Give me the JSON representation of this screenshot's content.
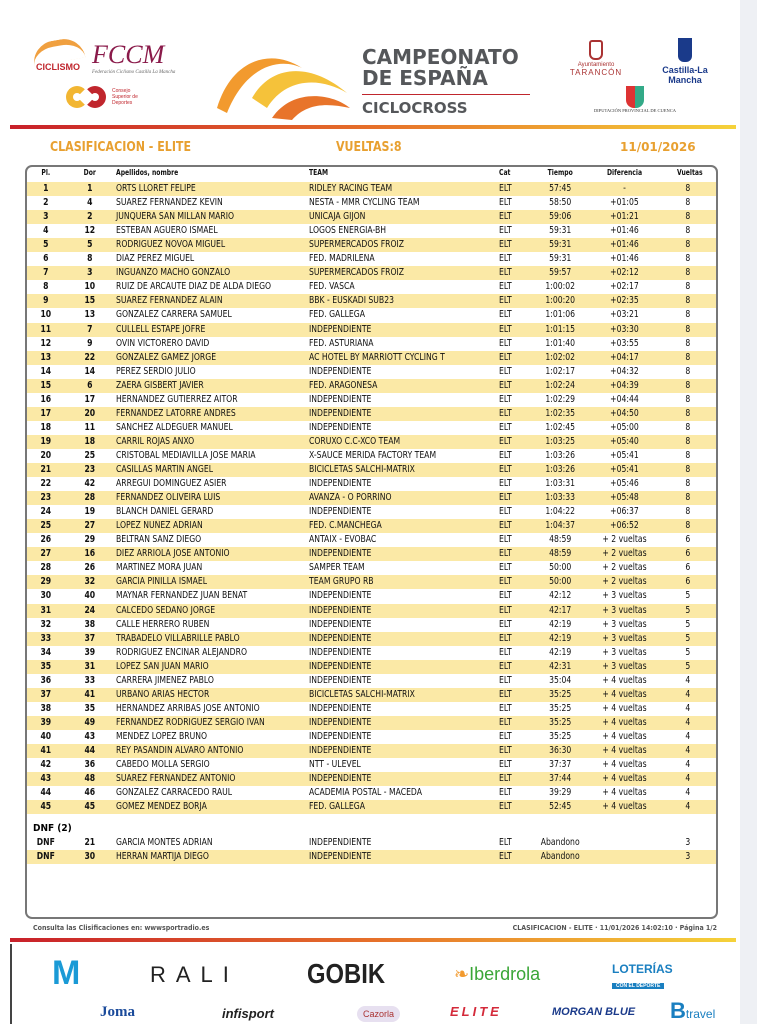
{
  "header": {
    "logos": {
      "rfec": "CICLISMO",
      "fccm": "FCCM",
      "fccm_sub": "Federación Ciclismo Castilla La Mancha",
      "csd": "Consejo Superior de Deportes",
      "tarancon_a": "Ayuntamiento",
      "tarancon_b": "TARANCÓN",
      "clm": "Castilla-La Mancha",
      "diputacion": "DIPUTACIÓN PROVINCIAL DE CUENCA"
    },
    "title_line1": "CAMPEONATO",
    "title_line2": "DE ESPAÑA",
    "title_line3": "CICLOCROSS",
    "classification": "CLASIFICACION - ELITE",
    "laps": "VUELTAS:8",
    "date": "11/01/2026"
  },
  "colors": {
    "accent": "#e8a030",
    "row_alt": "#fbe9a6",
    "bar_start": "#c8202a",
    "bar_end": "#f5d23a"
  },
  "table": {
    "columns": [
      "Pl.",
      "Dor",
      "Apellidos, nombre",
      "TEAM",
      "Cat",
      "Tiempo",
      "Diferencia",
      "Vueltas"
    ],
    "rows": [
      [
        "1",
        "1",
        "ORTS LLORET FELIPE",
        "RIDLEY RACING TEAM",
        "ELT",
        "57:45",
        "-",
        "8"
      ],
      [
        "2",
        "4",
        "SUAREZ FERNANDEZ KEVIN",
        "NESTA - MMR CYCLING TEAM",
        "ELT",
        "58:50",
        "+01:05",
        "8"
      ],
      [
        "3",
        "2",
        "JUNQUERA SAN MILLAN MARIO",
        "UNICAJA GIJON",
        "ELT",
        "59:06",
        "+01:21",
        "8"
      ],
      [
        "4",
        "12",
        "ESTEBAN AGUERO ISMAEL",
        "LOGOS ENERGIA-BH",
        "ELT",
        "59:31",
        "+01:46",
        "8"
      ],
      [
        "5",
        "5",
        "RODRIGUEZ NOVOA MIGUEL",
        "SUPERMERCADOS FROIZ",
        "ELT",
        "59:31",
        "+01:46",
        "8"
      ],
      [
        "6",
        "8",
        "DIAZ PEREZ MIGUEL",
        "FED. MADRILEÑA",
        "ELT",
        "59:31",
        "+01:46",
        "8"
      ],
      [
        "7",
        "3",
        "INGUANZO MACHO GONZALO",
        "SUPERMERCADOS FROIZ",
        "ELT",
        "59:57",
        "+02:12",
        "8"
      ],
      [
        "8",
        "10",
        "RUIZ DE ARCAUTE DIAZ DE ALDA DIEGO",
        "FED. VASCA",
        "ELT",
        "1:00:02",
        "+02:17",
        "8"
      ],
      [
        "9",
        "15",
        "SUAREZ FERNANDEZ ALAIN",
        "BBK - EUSKADI SUB23",
        "ELT",
        "1:00:20",
        "+02:35",
        "8"
      ],
      [
        "10",
        "13",
        "GONZALEZ CARRERA SAMUEL",
        "FED. GALLEGA",
        "ELT",
        "1:01:06",
        "+03:21",
        "8"
      ],
      [
        "11",
        "7",
        "CULLELL ESTAPE JOFRE",
        "INDEPENDIENTE",
        "ELT",
        "1:01:15",
        "+03:30",
        "8"
      ],
      [
        "12",
        "9",
        "OVIN VICTORERO DAVID",
        "FED. ASTURIANA",
        "ELT",
        "1:01:40",
        "+03:55",
        "8"
      ],
      [
        "13",
        "22",
        "GONZALEZ GAMEZ JORGE",
        "AC HOTEL BY MARRIOTT CYCLING T",
        "ELT",
        "1:02:02",
        "+04:17",
        "8"
      ],
      [
        "14",
        "14",
        "PEREZ SERDIO JULIO",
        "INDEPENDIENTE",
        "ELT",
        "1:02:17",
        "+04:32",
        "8"
      ],
      [
        "15",
        "6",
        "ZAERA GISBERT JAVIER",
        "FED. ARAGONESA",
        "ELT",
        "1:02:24",
        "+04:39",
        "8"
      ],
      [
        "16",
        "17",
        "HERNANDEZ GUTIERREZ AITOR",
        "INDEPENDIENTE",
        "ELT",
        "1:02:29",
        "+04:44",
        "8"
      ],
      [
        "17",
        "20",
        "FERNANDEZ LATORRE ANDRES",
        "INDEPENDIENTE",
        "ELT",
        "1:02:35",
        "+04:50",
        "8"
      ],
      [
        "18",
        "11",
        "SANCHEZ ALDEGUER MANUEL",
        "INDEPENDIENTE",
        "ELT",
        "1:02:45",
        "+05:00",
        "8"
      ],
      [
        "19",
        "18",
        "CARRIL ROJAS ANXO",
        "CORUXO C.C-XCO TEAM",
        "ELT",
        "1:03:25",
        "+05:40",
        "8"
      ],
      [
        "20",
        "25",
        "CRISTOBAL MEDIAVILLA JOSE MARIA",
        "X-SAUCE MERIDA FACTORY TEAM",
        "ELT",
        "1:03:26",
        "+05:41",
        "8"
      ],
      [
        "21",
        "23",
        "CASILLAS MARTIN ANGEL",
        "BICICLETAS SALCHI-MATRIX",
        "ELT",
        "1:03:26",
        "+05:41",
        "8"
      ],
      [
        "22",
        "42",
        "ARREGUI DOMINGUEZ ASIER",
        "INDEPENDIENTE",
        "ELT",
        "1:03:31",
        "+05:46",
        "8"
      ],
      [
        "23",
        "28",
        "FERNANDEZ OLIVEIRA LUIS",
        "AVANZA - O PORRIÑO",
        "ELT",
        "1:03:33",
        "+05:48",
        "8"
      ],
      [
        "24",
        "19",
        "BLANCH DANIEL GERARD",
        "INDEPENDIENTE",
        "ELT",
        "1:04:22",
        "+06:37",
        "8"
      ],
      [
        "25",
        "27",
        "LOPEZ NUÑEZ ADRIAN",
        "FED. C.MANCHEGA",
        "ELT",
        "1:04:37",
        "+06:52",
        "8"
      ],
      [
        "26",
        "29",
        "BELTRAN SANZ DIEGO",
        "ANTAIX - EVOBAC",
        "ELT",
        "48:59",
        "+ 2 vueltas",
        "6"
      ],
      [
        "27",
        "16",
        "DIEZ ARRIOLA JOSE ANTONIO",
        "INDEPENDIENTE",
        "ELT",
        "48:59",
        "+ 2 vueltas",
        "6"
      ],
      [
        "28",
        "26",
        "MARTINEZ MORA JUAN",
        "SAMPER TEAM",
        "ELT",
        "50:00",
        "+ 2 vueltas",
        "6"
      ],
      [
        "29",
        "32",
        "GARCIA PINILLA ISMAEL",
        "TEAM GRUPO RB",
        "ELT",
        "50:00",
        "+ 2 vueltas",
        "6"
      ],
      [
        "30",
        "40",
        "MAYNAR FERNANDEZ JUAN BEÑAT",
        "INDEPENDIENTE",
        "ELT",
        "42:12",
        "+ 3 vueltas",
        "5"
      ],
      [
        "31",
        "24",
        "CALCEDO SEDANO JORGE",
        "INDEPENDIENTE",
        "ELT",
        "42:17",
        "+ 3 vueltas",
        "5"
      ],
      [
        "32",
        "38",
        "CALLE HERRERO RUBEN",
        "INDEPENDIENTE",
        "ELT",
        "42:19",
        "+ 3 vueltas",
        "5"
      ],
      [
        "33",
        "37",
        "TRABADELO VILLABRILLE PABLO",
        "INDEPENDIENTE",
        "ELT",
        "42:19",
        "+ 3 vueltas",
        "5"
      ],
      [
        "34",
        "39",
        "RODRIGUEZ ENCINAR ALEJANDRO",
        "INDEPENDIENTE",
        "ELT",
        "42:19",
        "+ 3 vueltas",
        "5"
      ],
      [
        "35",
        "31",
        "LOPEZ SAN JUAN MARIO",
        "INDEPENDIENTE",
        "ELT",
        "42:31",
        "+ 3 vueltas",
        "5"
      ],
      [
        "36",
        "33",
        "CARRERA JIMENEZ PABLO",
        "INDEPENDIENTE",
        "ELT",
        "35:04",
        "+ 4 vueltas",
        "4"
      ],
      [
        "37",
        "41",
        "URBANO ARIAS HECTOR",
        "BICICLETAS SALCHI-MATRIX",
        "ELT",
        "35:25",
        "+ 4 vueltas",
        "4"
      ],
      [
        "38",
        "35",
        "HERNANDEZ ARRIBAS JOSE ANTONIO",
        "INDEPENDIENTE",
        "ELT",
        "35:25",
        "+ 4 vueltas",
        "4"
      ],
      [
        "39",
        "49",
        "FERNANDEZ RODRIGUEZ SERGIO IVAN",
        "INDEPENDIENTE",
        "ELT",
        "35:25",
        "+ 4 vueltas",
        "4"
      ],
      [
        "40",
        "43",
        "MENDEZ LOPEZ BRUNO",
        "INDEPENDIENTE",
        "ELT",
        "35:25",
        "+ 4 vueltas",
        "4"
      ],
      [
        "41",
        "44",
        "REY PASANDIN ALVARO ANTONIO",
        "INDEPENDIENTE",
        "ELT",
        "36:30",
        "+ 4 vueltas",
        "4"
      ],
      [
        "42",
        "36",
        "CABEDO MOLLA SERGIO",
        "NTT - ULEVEL",
        "ELT",
        "37:37",
        "+ 4 vueltas",
        "4"
      ],
      [
        "43",
        "48",
        "SUAREZ FERNANDEZ ANTONIO",
        "INDEPENDIENTE",
        "ELT",
        "37:44",
        "+ 4 vueltas",
        "4"
      ],
      [
        "44",
        "46",
        "GONZALEZ CARRACEDO RAUL",
        "ACADEMIA POSTAL - MACEDA",
        "ELT",
        "39:29",
        "+ 4 vueltas",
        "4"
      ],
      [
        "45",
        "45",
        "GOMEZ MENDEZ BORJA",
        "FED. GALLEGA",
        "ELT",
        "52:45",
        "+ 4 vueltas",
        "4"
      ]
    ],
    "dnf_title": "DNF (2)",
    "dnf_rows": [
      [
        "DNF",
        "21",
        "GARCIA MONTES ADRIAN",
        "INDEPENDIENTE",
        "ELT",
        "Abandono",
        "",
        "3"
      ],
      [
        "DNF",
        "30",
        "HERRAN MARTIJA DIEGO",
        "INDEPENDIENTE",
        "ELT",
        "Abandono",
        "",
        "3"
      ]
    ]
  },
  "footer": {
    "left": "Consulta las Clisificaciones en: wwwsportradio.es",
    "right": "CLASIFICACION - ELITE · 11/01/2026 14:02:10 · Página 1/2"
  },
  "sponsors": [
    "Movistar",
    "RALI",
    "GOBIK",
    "Iberdrola",
    "LOTERÍAS",
    "CON EL DEPORTE",
    "Joma",
    "infisport",
    "Cazorla",
    "ELITE",
    "MORGAN BLUE",
    "travel"
  ]
}
